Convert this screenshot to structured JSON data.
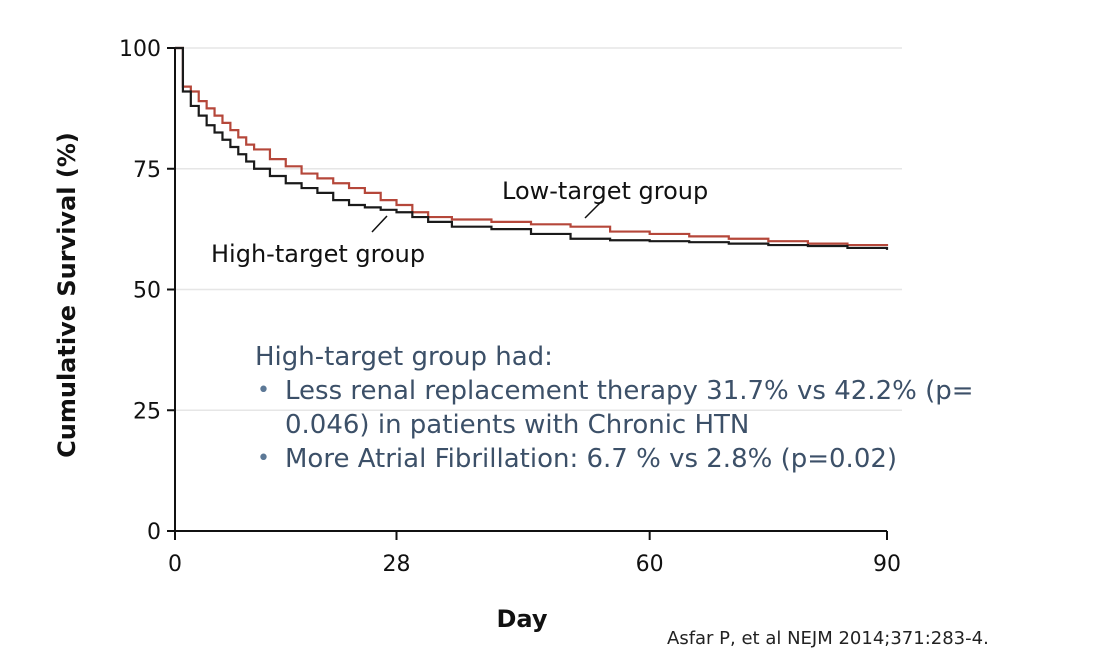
{
  "chart_data": {
    "type": "line",
    "title": "",
    "xlabel": "Day",
    "ylabel": "Cumulative Survival (%)",
    "x_ticks": [
      "0",
      "28",
      "60",
      "90"
    ],
    "y_ticks": [
      "0",
      "25",
      "50",
      "75",
      "100"
    ],
    "xlim": [
      0,
      90
    ],
    "ylim": [
      0,
      100
    ],
    "grid": "horizontal",
    "series": [
      {
        "name": "Low-target group",
        "color": "#b5473a",
        "x": [
          0,
          1,
          1,
          2,
          3,
          4,
          5,
          6,
          7,
          8,
          9,
          10,
          12,
          14,
          16,
          18,
          20,
          22,
          24,
          26,
          28,
          30,
          32,
          35,
          40,
          45,
          50,
          55,
          60,
          65,
          70,
          75,
          80,
          85,
          90
        ],
        "y": [
          100,
          100,
          92,
          91,
          89,
          87.5,
          86,
          84.5,
          83,
          81.5,
          80,
          79,
          77,
          75.5,
          74,
          73,
          72,
          71,
          70,
          68.5,
          67.5,
          66,
          65,
          64.5,
          64,
          63.5,
          63,
          62,
          61.5,
          61,
          60.5,
          60,
          59.5,
          59.2,
          59
        ]
      },
      {
        "name": "High-target group",
        "color": "#1a1a1a",
        "x": [
          0,
          1,
          1,
          2,
          3,
          4,
          5,
          6,
          7,
          8,
          9,
          10,
          12,
          14,
          16,
          18,
          20,
          22,
          24,
          26,
          28,
          30,
          32,
          35,
          40,
          45,
          50,
          55,
          60,
          65,
          70,
          75,
          80,
          85,
          90
        ],
        "y": [
          100,
          100,
          91,
          88,
          86,
          84,
          82.5,
          81,
          79.5,
          78,
          76.5,
          75,
          73.5,
          72,
          71,
          70,
          68.5,
          67.5,
          67,
          66.5,
          66,
          65,
          64,
          63,
          62.5,
          61.5,
          60.5,
          60.2,
          60,
          59.8,
          59.5,
          59.2,
          59,
          58.6,
          58.2
        ]
      }
    ]
  },
  "series_labels": {
    "low": "Low-target group",
    "high": "High-target group"
  },
  "annotation": {
    "intro": "High-target group had:",
    "bullets": [
      "Less renal replacement therapy  31.7% vs 42.2%  (p= 0.046) in patients with Chronic HTN",
      "More Atrial Fibrillation: 6.7 % vs 2.8% (p=0.02)"
    ]
  },
  "citation": "Asfar P, et al NEJM 2014;371:283-4."
}
